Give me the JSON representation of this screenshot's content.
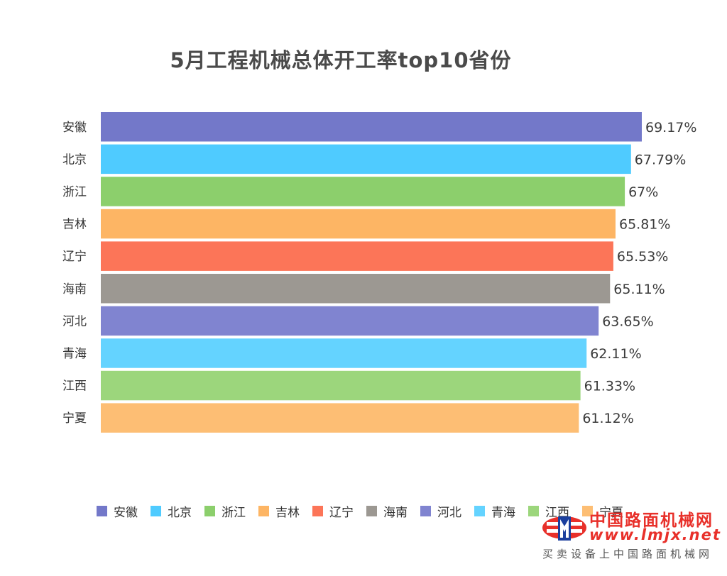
{
  "chart_data": {
    "type": "bar",
    "orientation": "horizontal",
    "title": "5月工程机械总体开工率top10省份",
    "categories": [
      "安徽",
      "北京",
      "浙江",
      "吉林",
      "辽宁",
      "海南",
      "河北",
      "青海",
      "江西",
      "宁夏"
    ],
    "values": [
      69.17,
      67.79,
      67,
      65.81,
      65.53,
      65.11,
      63.65,
      62.11,
      61.33,
      61.12
    ],
    "value_labels": [
      "69.17%",
      "67.79%",
      "67%",
      "65.81%",
      "65.53%",
      "65.11%",
      "63.65%",
      "62.11%",
      "61.33%",
      "61.12%"
    ],
    "colors": [
      "#7378c9",
      "#4fcbff",
      "#8ccf6c",
      "#fdb564",
      "#fc7558",
      "#9c9892",
      "#8084d0",
      "#64d3ff",
      "#9cd67c",
      "#fdbe74"
    ],
    "xlabel": "",
    "ylabel": "",
    "grid": false,
    "legend": "bottom"
  },
  "watermark": {
    "name": "中国路面机械网",
    "url": "www.lmjx.net",
    "slogan": "买卖设备上中国路面机械网"
  }
}
